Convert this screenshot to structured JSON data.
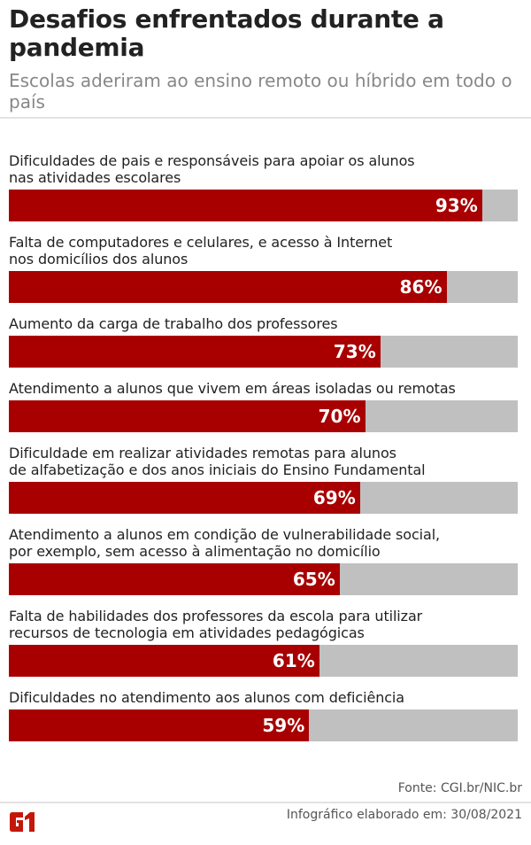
{
  "header": {
    "title": "Desafios enfrentados durante a pandemia",
    "subtitle": "Escolas aderiram ao ensino remoto ou híbrido em todo o país"
  },
  "colors": {
    "bar": "#a80000",
    "track": "#c0c0c0"
  },
  "chart_data": {
    "type": "bar",
    "orientation": "horizontal",
    "xlim": [
      0,
      100
    ],
    "categories": [
      "Dificuldades de pais e responsáveis para apoiar os alunos nas atividades escolares",
      "Falta de computadores e celulares, e acesso à Internet nos domicílios dos alunos",
      "Aumento da carga de trabalho dos professores",
      "Atendimento a alunos que vivem em áreas isoladas ou remotas",
      "Dificuldade em realizar atividades remotas para alunos de alfabetização e dos anos iniciais do Ensino Fundamental",
      "Atendimento a alunos em condição de vulnerabilidade social, por exemplo, sem acesso à alimentação no domicílio",
      "Falta de habilidades dos professores da escola para utilizar recursos de tecnologia em atividades pedagógicas",
      "Dificuldades no atendimento aos alunos com deficiência"
    ],
    "values": [
      93,
      86,
      73,
      70,
      69,
      65,
      61,
      59
    ],
    "labels": [
      "93%",
      "86%",
      "73%",
      "70%",
      "69%",
      "65%",
      "61%",
      "59%"
    ]
  },
  "footer": {
    "source": "Fonte: CGI.br/NIC.br",
    "credit": "Infográfico elaborado em: 30/08/2021",
    "logo": "G1"
  }
}
